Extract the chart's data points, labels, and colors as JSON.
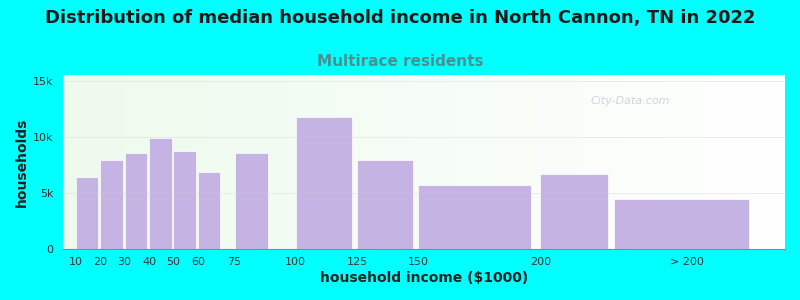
{
  "title": "Distribution of median household income in North Cannon, TN in 2022",
  "subtitle": "Multirace residents",
  "xlabel": "household income ($1000)",
  "ylabel": "households",
  "background_outer": "#00FFFF",
  "bar_color": "#c5b4e3",
  "categories": [
    "10",
    "20",
    "30",
    "40",
    "50",
    "60",
    "75",
    "100",
    "125",
    "150",
    "200",
    "> 200"
  ],
  "bar_lefts": [
    10,
    20,
    30,
    40,
    50,
    60,
    75,
    100,
    125,
    150,
    200,
    230
  ],
  "bar_widths": [
    10,
    10,
    10,
    10,
    10,
    10,
    15,
    25,
    25,
    50,
    30,
    60
  ],
  "values": [
    6400,
    7900,
    8600,
    9900,
    8700,
    6900,
    8600,
    11800,
    7900,
    5700,
    6700,
    4500
  ],
  "xtick_positions": [
    10,
    20,
    30,
    40,
    50,
    60,
    75,
    100,
    125,
    150,
    200,
    260
  ],
  "xtick_labels": [
    "10",
    "20",
    "30",
    "40",
    "50",
    "60",
    "75",
    "100",
    "125",
    "150",
    "200",
    "> 200"
  ],
  "yticks": [
    0,
    5000,
    10000,
    15000
  ],
  "ytick_labels": [
    "0",
    "5k",
    "10k",
    "15k"
  ],
  "ylim": [
    0,
    15500
  ],
  "xlim": [
    5,
    300
  ],
  "title_fontsize": 13,
  "subtitle_fontsize": 11,
  "title_color": "#1a1a1a",
  "subtitle_color": "#4a9090",
  "axis_label_fontsize": 10,
  "tick_fontsize": 8,
  "watermark": "City-Data.com"
}
